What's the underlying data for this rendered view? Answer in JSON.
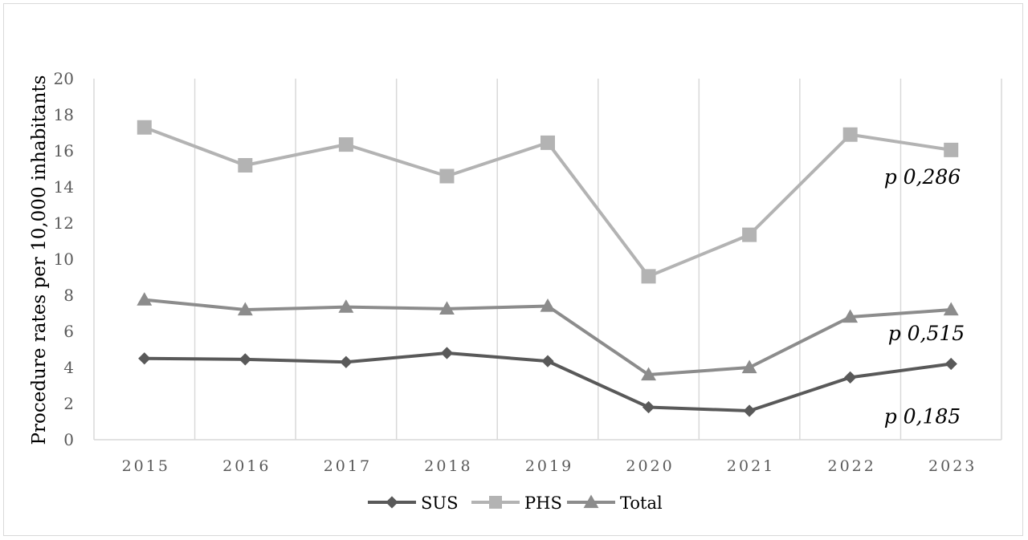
{
  "chart_data": {
    "type": "line",
    "title": "",
    "xlabel": "",
    "ylabel": "Procedure rates per 10,000 inhabitants",
    "ylim": [
      0,
      20
    ],
    "yticks": [
      0,
      2,
      4,
      6,
      8,
      10,
      12,
      14,
      16,
      18,
      20
    ],
    "categories": [
      "2015",
      "2016",
      "2017",
      "2018",
      "2019",
      "2020",
      "2021",
      "2022",
      "2023"
    ],
    "grid": "vertical",
    "legend_position": "bottom",
    "series": [
      {
        "name": "SUS",
        "marker": "diamond",
        "color": "#595959",
        "values": [
          4.5,
          4.45,
          4.3,
          4.8,
          4.35,
          1.8,
          1.6,
          3.45,
          4.2
        ]
      },
      {
        "name": "PHS",
        "marker": "square",
        "color": "#b3b3b3",
        "values": [
          17.3,
          15.2,
          16.35,
          14.6,
          16.45,
          9.05,
          11.35,
          16.9,
          16.05
        ]
      },
      {
        "name": "Total",
        "marker": "triangle",
        "color": "#8c8c8c",
        "values": [
          7.75,
          7.2,
          7.35,
          7.25,
          7.4,
          3.6,
          4.0,
          6.8,
          7.2
        ]
      }
    ],
    "annotations": [
      {
        "text": "p 0,286",
        "series": "PHS"
      },
      {
        "text": "p 0,515",
        "series": "Total"
      },
      {
        "text": "p 0,185",
        "series": "SUS"
      }
    ]
  }
}
